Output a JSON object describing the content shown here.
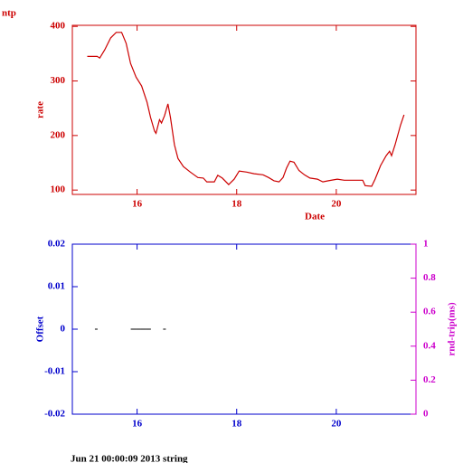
{
  "chart_data": [
    {
      "type": "line",
      "title": "ntp",
      "xlabel": "Date",
      "ylabel": "rate",
      "color": "#cc0000",
      "xlim": [
        14.7,
        21.6
      ],
      "ylim": [
        92,
        402
      ],
      "xticks": [
        16,
        18,
        20
      ],
      "yticks": [
        100,
        200,
        300,
        400
      ],
      "x": [
        15.0,
        15.2,
        15.25,
        15.35,
        15.47,
        15.58,
        15.69,
        15.78,
        15.87,
        15.98,
        16.09,
        16.2,
        16.27,
        16.35,
        16.38,
        16.45,
        16.49,
        16.55,
        16.62,
        16.67,
        16.75,
        16.82,
        16.93,
        17.07,
        17.22,
        17.33,
        17.4,
        17.55,
        17.62,
        17.71,
        17.84,
        17.95,
        18.05,
        18.2,
        18.35,
        18.53,
        18.64,
        18.75,
        18.85,
        18.93,
        19.0,
        19.07,
        19.15,
        19.25,
        19.36,
        19.47,
        19.62,
        19.73,
        19.84,
        20.02,
        20.16,
        20.38,
        20.53,
        20.58,
        20.71,
        20.78,
        20.89,
        21.0,
        21.07,
        21.11,
        21.18,
        21.29,
        21.36
      ],
      "values": [
        345,
        345,
        342,
        357,
        379,
        389,
        389,
        369,
        332,
        307,
        291,
        261,
        233,
        208,
        204,
        229,
        223,
        236,
        258,
        233,
        183,
        158,
        143,
        133,
        123,
        122,
        115,
        115,
        127,
        122,
        110,
        120,
        135,
        133,
        130,
        128,
        123,
        117,
        115,
        123,
        140,
        153,
        151,
        136,
        128,
        122,
        120,
        115,
        117,
        120,
        118,
        118,
        118,
        108,
        107,
        120,
        145,
        163,
        171,
        163,
        183,
        219,
        238
      ]
    },
    {
      "type": "scatter",
      "xlabel": "",
      "ylabel": "Offset",
      "y2label": "rnd-trip(ms)",
      "color": "#0000cc",
      "y2color": "#cc00cc",
      "xlim": [
        14.7,
        21.6
      ],
      "ylim": [
        -0.02,
        0.02
      ],
      "xticks": [
        16,
        18,
        20
      ],
      "yticks": [
        -0.02,
        -0.01,
        0,
        0.01,
        0.02
      ],
      "y2lim": [
        0,
        1
      ],
      "y2ticks": [
        0,
        0.2,
        0.4,
        0.6,
        0.8,
        1
      ],
      "series": [
        {
          "color": "#000000",
          "x": [
            15.18,
            15.9,
            15.95,
            16.0,
            16.05,
            16.1,
            16.15,
            16.2,
            16.25,
            16.55
          ],
          "values": [
            0,
            0,
            0,
            0,
            0,
            0,
            0,
            0,
            0,
            0
          ]
        }
      ]
    }
  ],
  "footer": "Jun 21 00:00:09 2013 string"
}
